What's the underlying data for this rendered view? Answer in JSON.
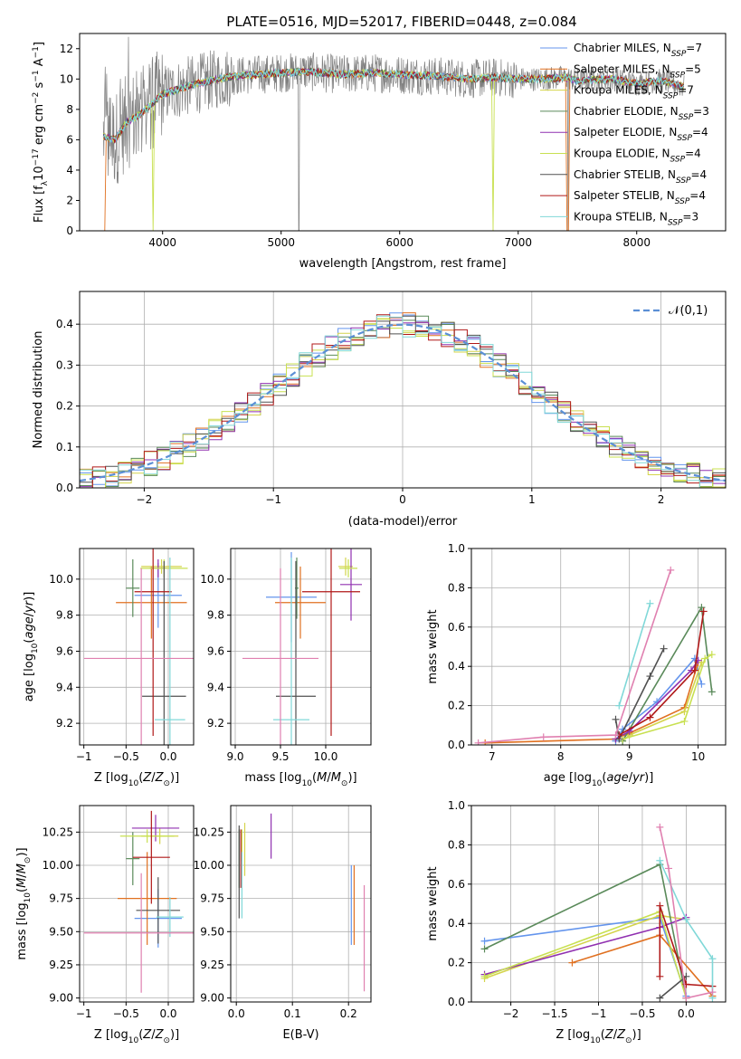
{
  "figure": {
    "title": "PLATE=0516, MJD=52017, FIBERID=0448, z=0.084"
  },
  "colors": {
    "models": [
      "#6495ed",
      "#e07020",
      "#d4d44c",
      "#5a8a5a",
      "#9030b0",
      "#c8e050",
      "#505050",
      "#b01818",
      "#80d8d8"
    ],
    "data": "#808080",
    "normal": "#5b8fd5",
    "grid": "#b0b0b0",
    "pink": "#e080b0"
  },
  "chart_data": [
    {
      "id": "spectrum",
      "type": "line",
      "xlabel": "wavelength [Angstrom, rest frame]",
      "ylabel": "Flux [f_λ10^-17 erg cm^-2 s^-1 A^-1]",
      "xlim": [
        3300,
        8750
      ],
      "ylim": [
        0,
        13
      ],
      "xticks": [
        4000,
        5000,
        6000,
        7000,
        8000
      ],
      "yticks": [
        0,
        2,
        4,
        6,
        8,
        10,
        12
      ],
      "grid": false,
      "legend_position": "right",
      "legend": [
        "Chabrier MILES, N_SSP=7",
        "Salpeter MILES, N_SSP=5",
        "Kroupa MILES, N_SSP=7",
        "Chabrier ELODIE, N_SSP=3",
        "Salpeter ELODIE, N_SSP=4",
        "Kroupa ELODIE, N_SSP=4",
        "Chabrier STELIB, N_SSP=4",
        "Salpeter STELIB, N_SSP=4",
        "Kroupa STELIB, N_SSP=3"
      ],
      "continuum": {
        "wavelength": [
          3500,
          3600,
          3700,
          3800,
          3900,
          4000,
          4200,
          4400,
          4600,
          4800,
          5000,
          5200,
          5500,
          5800,
          6000,
          6300,
          6600,
          6800,
          7000,
          7200,
          7400,
          7500,
          7800,
          8000,
          8200,
          8400
        ],
        "flux": [
          6.2,
          6.0,
          7.2,
          7.6,
          8.3,
          9.0,
          9.5,
          9.9,
          10.2,
          10.3,
          10.4,
          10.5,
          10.3,
          10.4,
          10.3,
          10.2,
          10.0,
          10.1,
          10.0,
          10.0,
          10.1,
          9.9,
          10.0,
          9.7,
          9.9,
          9.5
        ]
      }
    },
    {
      "id": "residuals",
      "type": "bar",
      "xlabel": "(data-model)/error",
      "ylabel": "Normed distribution",
      "xlim": [
        -2.5,
        2.5
      ],
      "ylim": [
        0,
        0.48
      ],
      "xticks": [
        -2,
        -1,
        0,
        1,
        2
      ],
      "yticks": [
        0.0,
        0.1,
        0.2,
        0.3,
        0.4
      ],
      "grid": true,
      "legend_position": "top-right",
      "legend": [
        "𝒩(0,1)"
      ]
    },
    {
      "id": "age_vs_Z",
      "type": "scatter",
      "xlabel": "Z [log10(Z/Z⊙)]",
      "ylabel": "age  [log10(age/yr)]",
      "xlim": [
        -1.05,
        0.3
      ],
      "ylim": [
        9.08,
        10.17
      ],
      "xticks": [
        -1.0,
        -0.5,
        0.0
      ],
      "yticks": [
        9.2,
        9.4,
        9.6,
        9.8,
        10.0
      ],
      "grid": true,
      "errorbars": [
        {
          "x": -0.12,
          "y": 9.91,
          "xerr": 0.28,
          "yerr": 0.18
        },
        {
          "x": -0.2,
          "y": 9.87,
          "xerr": 0.42,
          "yerr": 0.2
        },
        {
          "x": -0.08,
          "y": 10.07,
          "xerr": 0.24,
          "yerr": 0.04
        },
        {
          "x": -0.42,
          "y": 9.95,
          "xerr": 0.08,
          "yerr": 0.16
        },
        {
          "x": -0.12,
          "y": 10.06,
          "xerr": 0.1,
          "yerr": 0.05
        },
        {
          "x": -0.05,
          "y": 10.06,
          "xerr": 0.28,
          "yerr": 0.05
        },
        {
          "x": -0.05,
          "y": 9.35,
          "xerr": 0.26,
          "yerr": 0.75
        },
        {
          "x": -0.18,
          "y": 9.93,
          "xerr": 0.22,
          "yerr": 0.8
        },
        {
          "x": 0.02,
          "y": 9.22,
          "xerr": 0.18,
          "yerr": 0.9
        },
        {
          "x": -0.32,
          "y": 9.56,
          "xerr": 0.68,
          "yerr": 0.5
        }
      ]
    },
    {
      "id": "age_vs_mass",
      "type": "scatter",
      "xlabel": "mass [log10(M/M⊙)]",
      "ylabel": "",
      "xlim": [
        8.95,
        10.5
      ],
      "ylim": [
        9.08,
        10.17
      ],
      "xticks": [
        9.0,
        9.5,
        10.0
      ],
      "yticks": [
        9.2,
        9.4,
        9.6,
        9.8,
        10.0
      ],
      "grid": true,
      "errorbars": [
        {
          "x": 9.62,
          "y": 9.9,
          "xerr": 0.28,
          "yerr": 0.25
        },
        {
          "x": 9.72,
          "y": 9.87,
          "xerr": 0.28,
          "yerr": 0.2
        },
        {
          "x": 10.22,
          "y": 10.07,
          "xerr": 0.08,
          "yerr": 0.05
        },
        {
          "x": 9.68,
          "y": 9.95,
          "xerr": 0.02,
          "yerr": 0.17
        },
        {
          "x": 10.28,
          "y": 9.97,
          "xerr": 0.12,
          "yerr": 0.2
        },
        {
          "x": 10.25,
          "y": 10.06,
          "xerr": 0.1,
          "yerr": 0.05
        },
        {
          "x": 9.67,
          "y": 9.35,
          "xerr": 0.22,
          "yerr": 0.75
        },
        {
          "x": 10.06,
          "y": 9.93,
          "xerr": 0.32,
          "yerr": 0.8
        },
        {
          "x": 9.62,
          "y": 9.22,
          "xerr": 0.2,
          "yerr": 0.9
        },
        {
          "x": 9.5,
          "y": 9.56,
          "xerr": 0.42,
          "yerr": 0.5
        }
      ]
    },
    {
      "id": "weight_vs_age",
      "type": "line",
      "xlabel": "age  [log10(age/yr)]",
      "ylabel": "mass weight",
      "xlim": [
        6.7,
        10.4
      ],
      "ylim": [
        0,
        1.0
      ],
      "xticks": [
        7,
        8,
        9,
        10
      ],
      "yticks": [
        0.0,
        0.2,
        0.4,
        0.6,
        0.8,
        1.0
      ],
      "grid": true,
      "series": [
        {
          "x": [
            8.8,
            8.9,
            9.4,
            9.95,
            10.05
          ],
          "y": [
            0.02,
            0.08,
            0.22,
            0.44,
            0.31
          ]
        },
        {
          "x": [
            6.9,
            8.8,
            9.0,
            9.8,
            10.0
          ],
          "y": [
            0.01,
            0.03,
            0.06,
            0.19,
            0.42
          ]
        },
        {
          "x": [
            8.9,
            9.0,
            9.8,
            10.05
          ],
          "y": [
            0.02,
            0.05,
            0.17,
            0.42
          ]
        },
        {
          "x": [
            8.9,
            10.05,
            10.2
          ],
          "y": [
            0.02,
            0.7,
            0.27
          ]
        },
        {
          "x": [
            8.8,
            9.0,
            9.9,
            10.0
          ],
          "y": [
            0.03,
            0.07,
            0.38,
            0.43
          ]
        },
        {
          "x": [
            8.9,
            9.8,
            10.1,
            10.2
          ],
          "y": [
            0.03,
            0.12,
            0.44,
            0.46
          ]
        },
        {
          "x": [
            8.8,
            8.85,
            9.3,
            9.5
          ],
          "y": [
            0.13,
            0.03,
            0.35,
            0.49
          ]
        },
        {
          "x": [
            8.85,
            9.3,
            9.95,
            10.08
          ],
          "y": [
            0.05,
            0.14,
            0.38,
            0.68
          ]
        },
        {
          "x": [
            8.85,
            9.3
          ],
          "y": [
            0.2,
            0.72
          ]
        },
        {
          "x": [
            6.8,
            7.75,
            8.8,
            9.6
          ],
          "y": [
            0.01,
            0.04,
            0.05,
            0.89
          ]
        }
      ]
    },
    {
      "id": "mass_vs_Z",
      "type": "scatter",
      "xlabel": "Z [log10(Z/Z⊙)]",
      "ylabel": "mass [log10(M/M⊙)]",
      "xlim": [
        -1.05,
        0.3
      ],
      "ylim": [
        8.97,
        10.45
      ],
      "xticks": [
        -1.0,
        -0.5,
        0.0
      ],
      "yticks": [
        9.0,
        9.25,
        9.5,
        9.75,
        10.0,
        10.25
      ],
      "grid": true,
      "errorbars": [
        {
          "x": -0.12,
          "y": 9.6,
          "xerr": 0.28,
          "yerr": 0.22
        },
        {
          "x": -0.25,
          "y": 9.75,
          "xerr": 0.35,
          "yerr": 0.35
        },
        {
          "x": -0.1,
          "y": 10.22,
          "xerr": 0.22,
          "yerr": 0.06
        },
        {
          "x": -0.42,
          "y": 10.05,
          "xerr": 0.08,
          "yerr": 0.2
        },
        {
          "x": -0.15,
          "y": 10.28,
          "xerr": 0.28,
          "yerr": 0.1
        },
        {
          "x": -0.25,
          "y": 10.22,
          "xerr": 0.32,
          "yerr": 0.05
        },
        {
          "x": -0.12,
          "y": 9.66,
          "xerr": 0.26,
          "yerr": 0.25
        },
        {
          "x": -0.2,
          "y": 10.06,
          "xerr": 0.22,
          "yerr": 0.35
        },
        {
          "x": 0.02,
          "y": 9.61,
          "xerr": 0.16,
          "yerr": 0.15
        },
        {
          "x": -0.32,
          "y": 9.49,
          "xerr": 0.68,
          "yerr": 0.45
        }
      ]
    },
    {
      "id": "mass_vs_ebv",
      "type": "scatter",
      "xlabel": "E(B-V)",
      "ylabel": "",
      "xlim": [
        -0.01,
        0.24
      ],
      "ylim": [
        8.97,
        10.45
      ],
      "xticks": [
        0.0,
        0.1,
        0.2
      ],
      "yticks": [
        9.0,
        9.25,
        9.5,
        9.75,
        10.0,
        10.25
      ],
      "grid": true,
      "errorbars": [
        {
          "x": 0.205,
          "y": 9.7,
          "xerr": 0,
          "yerr": 0.3
        },
        {
          "x": 0.21,
          "y": 9.7,
          "xerr": 0,
          "yerr": 0.3
        },
        {
          "x": 0.015,
          "y": 10.12,
          "xerr": 0,
          "yerr": 0.2
        },
        {
          "x": 0.005,
          "y": 10.05,
          "xerr": 0,
          "yerr": 0.22
        },
        {
          "x": 0.062,
          "y": 10.22,
          "xerr": 0,
          "yerr": 0.17
        },
        {
          "x": 0.01,
          "y": 10.15,
          "xerr": 0,
          "yerr": 0.12
        },
        {
          "x": 0.005,
          "y": 9.95,
          "xerr": 0,
          "yerr": 0.35
        },
        {
          "x": 0.008,
          "y": 10.05,
          "xerr": 0,
          "yerr": 0.22
        },
        {
          "x": 0.01,
          "y": 9.85,
          "xerr": 0,
          "yerr": 0.25
        },
        {
          "x": 0.228,
          "y": 9.45,
          "xerr": 0,
          "yerr": 0.4
        }
      ]
    },
    {
      "id": "weight_vs_Z",
      "type": "line",
      "xlabel": "Z [log10(Z/Z⊙)]",
      "ylabel": "mass weight",
      "xlim": [
        -2.45,
        0.45
      ],
      "ylim": [
        0,
        1.0
      ],
      "xticks": [
        -2.0,
        -1.5,
        -1.0,
        -0.5,
        0.0
      ],
      "yticks": [
        0.0,
        0.2,
        0.4,
        0.6,
        0.8,
        1.0
      ],
      "grid": true,
      "series": [
        {
          "x": [
            -2.3,
            -0.3,
            0.0
          ],
          "y": [
            0.31,
            0.43,
            0.03
          ]
        },
        {
          "x": [
            -1.3,
            -0.3,
            0.3
          ],
          "y": [
            0.2,
            0.34,
            0.03
          ]
        },
        {
          "x": [
            -2.3,
            -0.3,
            0.0
          ],
          "y": [
            0.12,
            0.44,
            0.42
          ]
        },
        {
          "x": [
            -2.3,
            -0.3,
            0.0
          ],
          "y": [
            0.27,
            0.7,
            0.02
          ]
        },
        {
          "x": [
            -2.3,
            -0.3,
            0.0
          ],
          "y": [
            0.14,
            0.38,
            0.43
          ]
        },
        {
          "x": [
            -2.3,
            -0.3,
            0.0
          ],
          "y": [
            0.13,
            0.46,
            0.02
          ]
        },
        {
          "x": [
            -0.3,
            0.0
          ],
          "y": [
            0.02,
            0.13
          ]
        },
        {
          "x": [
            -0.3,
            -0.3,
            0.0,
            0.3
          ],
          "y": [
            0.13,
            0.49,
            0.09,
            0.08
          ]
        },
        {
          "x": [
            -0.3,
            0.0,
            0.3,
            0.3
          ],
          "y": [
            0.72,
            0.42,
            0.22,
            0.02
          ]
        },
        {
          "x": [
            -0.3,
            -0.2,
            0.0,
            0.3
          ],
          "y": [
            0.89,
            0.68,
            0.02,
            0.05
          ]
        }
      ]
    }
  ]
}
